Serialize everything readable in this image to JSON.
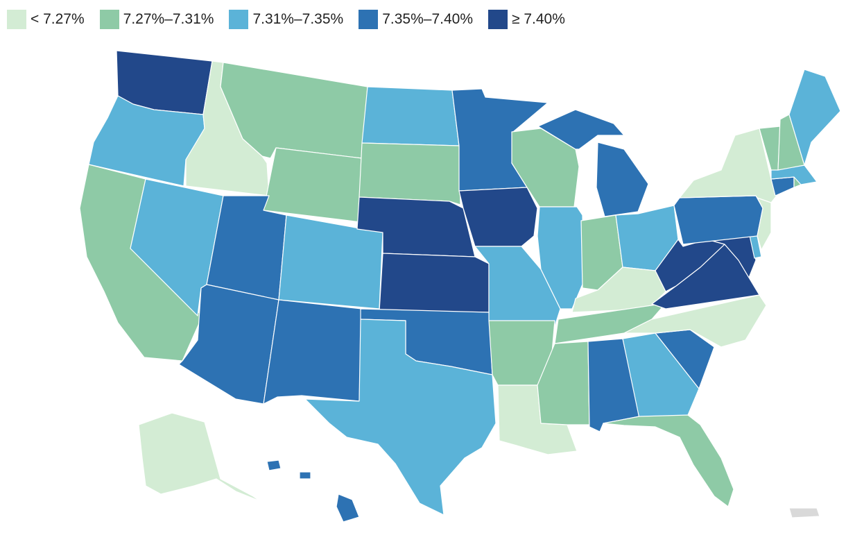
{
  "legend": [
    {
      "label": "< 7.27%",
      "color": "#d3ecd4"
    },
    {
      "label": "7.27%–7.31%",
      "color": "#8ecaa6"
    },
    {
      "label": "7.31%–7.35%",
      "color": "#5bb3d8"
    },
    {
      "label": "7.35%–7.40%",
      "color": "#2d72b3"
    },
    {
      "label": "≥ 7.40%",
      "color": "#22488a"
    }
  ],
  "territory_color": "#d9d9d9",
  "states": [
    {
      "id": "WA",
      "bin": 4
    },
    {
      "id": "OR",
      "bin": 2
    },
    {
      "id": "CA",
      "bin": 1
    },
    {
      "id": "ID",
      "bin": 0
    },
    {
      "id": "NV",
      "bin": 2
    },
    {
      "id": "MT",
      "bin": 1
    },
    {
      "id": "WY",
      "bin": 1
    },
    {
      "id": "UT",
      "bin": 3
    },
    {
      "id": "AZ",
      "bin": 3
    },
    {
      "id": "CO",
      "bin": 2
    },
    {
      "id": "NM",
      "bin": 3
    },
    {
      "id": "ND",
      "bin": 2
    },
    {
      "id": "SD",
      "bin": 1
    },
    {
      "id": "NE",
      "bin": 4
    },
    {
      "id": "KS",
      "bin": 4
    },
    {
      "id": "OK",
      "bin": 3
    },
    {
      "id": "TX",
      "bin": 2
    },
    {
      "id": "MN",
      "bin": 3
    },
    {
      "id": "IA",
      "bin": 4
    },
    {
      "id": "MO",
      "bin": 2
    },
    {
      "id": "AR",
      "bin": 1
    },
    {
      "id": "LA",
      "bin": 0
    },
    {
      "id": "WI",
      "bin": 1
    },
    {
      "id": "IL",
      "bin": 2
    },
    {
      "id": "MI",
      "bin": 3
    },
    {
      "id": "IN",
      "bin": 1
    },
    {
      "id": "OH",
      "bin": 2
    },
    {
      "id": "KY",
      "bin": 0
    },
    {
      "id": "TN",
      "bin": 1
    },
    {
      "id": "MS",
      "bin": 1
    },
    {
      "id": "AL",
      "bin": 3
    },
    {
      "id": "GA",
      "bin": 2
    },
    {
      "id": "FL",
      "bin": 1
    },
    {
      "id": "SC",
      "bin": 3
    },
    {
      "id": "NC",
      "bin": 0
    },
    {
      "id": "VA",
      "bin": 4
    },
    {
      "id": "WV",
      "bin": 4
    },
    {
      "id": "MD",
      "bin": 4
    },
    {
      "id": "DE",
      "bin": 2
    },
    {
      "id": "PA",
      "bin": 3
    },
    {
      "id": "NJ",
      "bin": 0
    },
    {
      "id": "NY",
      "bin": 0
    },
    {
      "id": "CT",
      "bin": 3
    },
    {
      "id": "RI",
      "bin": 1
    },
    {
      "id": "MA",
      "bin": 2
    },
    {
      "id": "VT",
      "bin": 1
    },
    {
      "id": "NH",
      "bin": 1
    },
    {
      "id": "ME",
      "bin": 2
    },
    {
      "id": "AK",
      "bin": 0
    },
    {
      "id": "HI",
      "bin": 3
    },
    {
      "id": "PR",
      "bin": -1
    }
  ]
}
